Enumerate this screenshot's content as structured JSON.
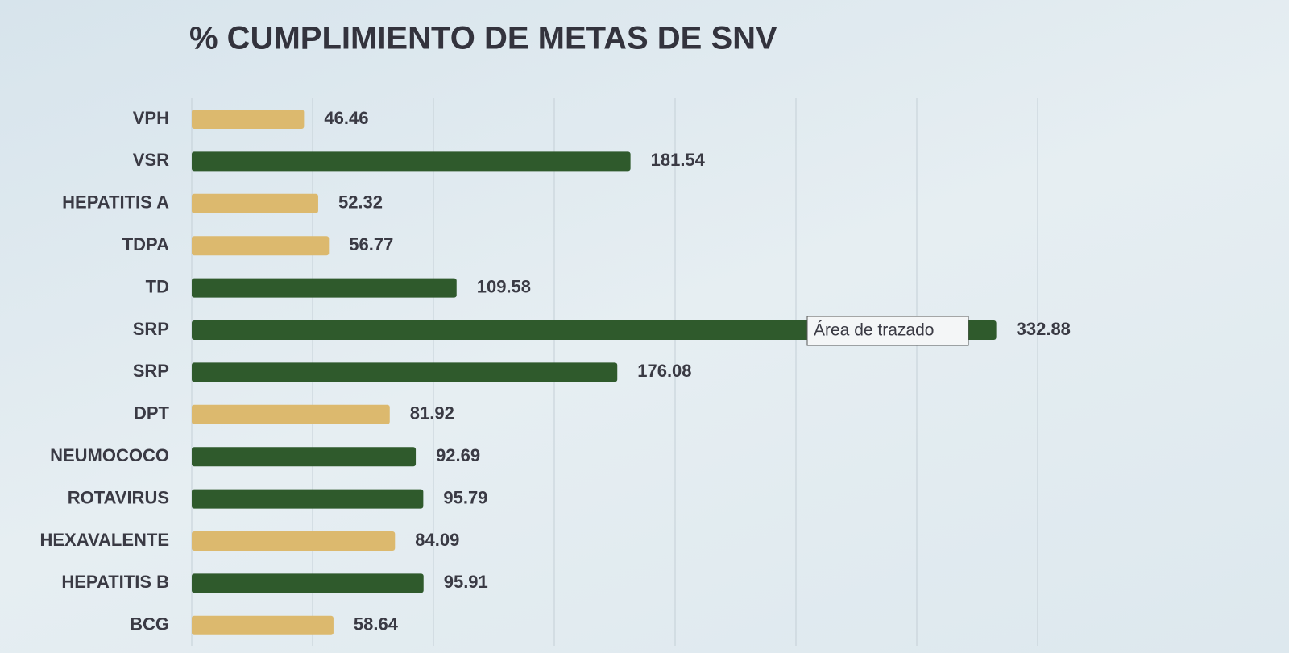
{
  "chart_data": {
    "type": "hbar",
    "title": "% CUMPLIMIENTO DE METAS DE SNV",
    "categories": [
      "VPH",
      "VSR",
      "HEPATITIS A",
      "TDPA",
      "TD",
      "SRP",
      "SRP",
      "DPT",
      "NEUMOCOCO",
      "ROTAVIRUS",
      "HEXAVALENTE",
      "HEPATITIS B",
      "BCG"
    ],
    "values": [
      46.46,
      181.54,
      52.32,
      56.77,
      109.58,
      332.88,
      176.08,
      81.92,
      92.69,
      95.79,
      84.09,
      95.91,
      58.64
    ],
    "colors": [
      "#dcb96e",
      "#2f5a2c",
      "#dcb96e",
      "#dcb96e",
      "#2f5a2c",
      "#2f5a2c",
      "#2f5a2c",
      "#dcb96e",
      "#2f5a2c",
      "#2f5a2c",
      "#dcb96e",
      "#2f5a2c",
      "#dcb96e"
    ],
    "xlim": [
      0,
      400
    ],
    "xticks": [
      0,
      50,
      100,
      150,
      200,
      250,
      300,
      350
    ],
    "grid": true,
    "tooltip": "Área de trazado"
  }
}
